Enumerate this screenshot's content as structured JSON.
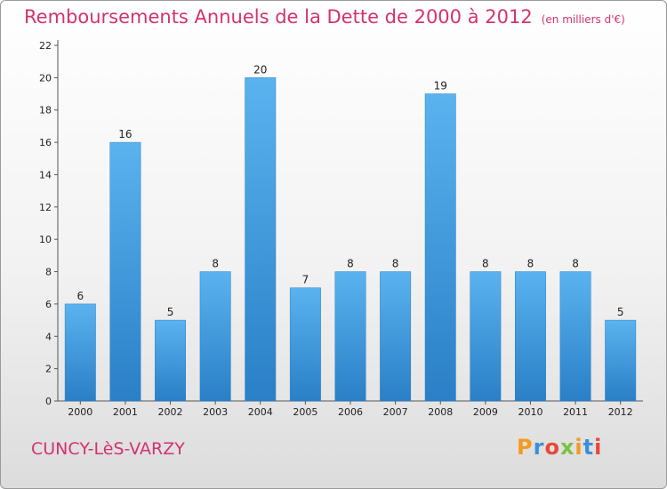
{
  "title": "Remboursements Annuels de la Dette de 2000 à 2012",
  "subtitle": "(en milliers d'€)",
  "commune": "CUNCY-LèS-VARZY",
  "logo": {
    "letters": [
      "P",
      "r",
      "o",
      "x",
      "i",
      "t",
      "i"
    ],
    "colors": [
      "#f29b1f",
      "#3c8fd9",
      "#e8473b",
      "#7cc142",
      "#f29b1f",
      "#3c8fd9",
      "#e8473b"
    ]
  },
  "colors": {
    "bar": "#3a9ae0",
    "bar_light": "#5ab3ef",
    "bar_dark": "#2a7fc6",
    "text": "#222222",
    "accent": "#d4326e"
  },
  "chart_data": {
    "type": "bar",
    "categories": [
      "2000",
      "2001",
      "2002",
      "2003",
      "2004",
      "2005",
      "2006",
      "2007",
      "2008",
      "2009",
      "2010",
      "2011",
      "2012"
    ],
    "values": [
      6,
      16,
      5,
      8,
      20,
      7,
      8,
      8,
      19,
      8,
      8,
      8,
      5
    ],
    "data_labels": [
      "6",
      "16",
      "5",
      "8",
      "20",
      "7",
      "8",
      "8",
      "19",
      "8",
      "8",
      "8",
      "5"
    ],
    "yticks": [
      0,
      2,
      4,
      6,
      8,
      10,
      12,
      14,
      16,
      18,
      20,
      22
    ],
    "ylim": [
      0,
      22
    ],
    "grid": false,
    "legend": "none"
  }
}
